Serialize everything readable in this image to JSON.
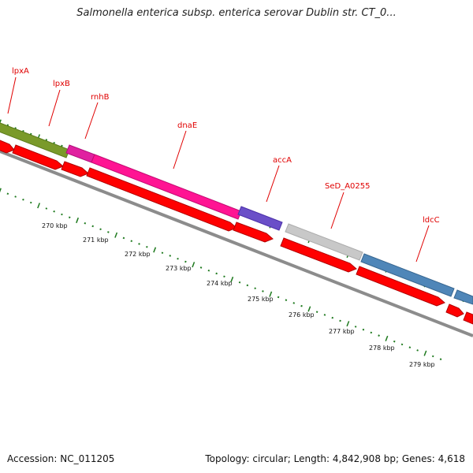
{
  "title": "Salmonella enterica subsp. enterica serovar Dublin str. CT_0...",
  "accession": "Accession: NC_011205",
  "summary": "Topology: circular; Length: 4,842,908 bp; Genes: 4,618",
  "colors": {
    "cds": "#ff0000",
    "backbone": "#8c8c8c",
    "tick": "#1f7a1f",
    "label": "#e00000",
    "lpxA": "#7a9a2a",
    "lpxB": "#e020a0",
    "rnhB": "#e020a0",
    "dnaE": "#ff1493",
    "accA": "#6a4fc8",
    "SeD_A0255": "#c8c8c8",
    "ldcC": "#4f86b8"
  },
  "genes": [
    {
      "name": "lpxA",
      "color": "lpxA"
    },
    {
      "name": "lpxB",
      "color": "lpxB"
    },
    {
      "name": "rnhB",
      "color": "rnhB"
    },
    {
      "name": "dnaE",
      "color": "dnaE"
    },
    {
      "name": "accA",
      "color": "accA"
    },
    {
      "name": "SeD_A0255",
      "color": "SeD_A0255"
    },
    {
      "name": "ldcC",
      "color": "ldcC"
    }
  ],
  "kbp_labels": [
    "270 kbp",
    "271 kbp",
    "272 kbp",
    "273 kbp",
    "274 kbp",
    "275 kbp",
    "276 kbp",
    "277 kbp",
    "278 kbp",
    "279 kbp"
  ]
}
